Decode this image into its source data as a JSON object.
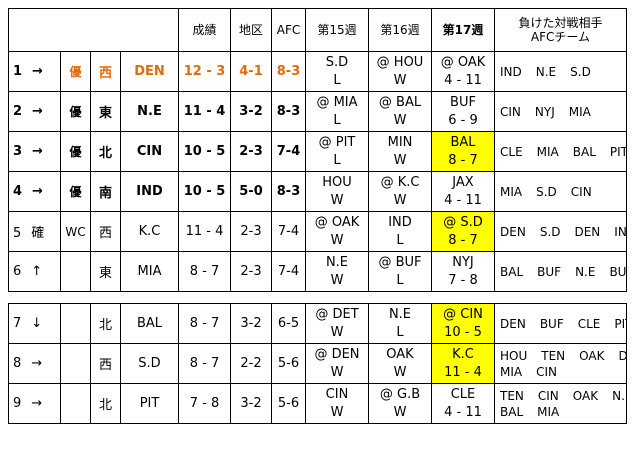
{
  "headers": {
    "record": "成績",
    "division": "地区",
    "afc": "AFC",
    "week15": "第15週",
    "week16": "第16週",
    "week17": "第17週",
    "losses_line1": "負けた対戦相手",
    "losses_line2": "AFCチーム"
  },
  "teams": [
    {
      "rank": "1",
      "trend": "→",
      "status": "優",
      "wc": "",
      "div": "西",
      "team": "DEN",
      "record": "12 - 3",
      "div_rec": "4-1",
      "afc_rec": "8-3",
      "w15": {
        "opp": "S.D",
        "res": "L"
      },
      "w16": {
        "opp": "@ HOU",
        "res": "W"
      },
      "w17": {
        "opp": "@ OAK",
        "res": "4 - 11"
      },
      "losses": [
        "IND",
        "N.E",
        "S.D"
      ]
    },
    {
      "rank": "2",
      "trend": "→",
      "status": "優",
      "wc": "",
      "div": "東",
      "team": "N.E",
      "record": "11 - 4",
      "div_rec": "3-2",
      "afc_rec": "8-3",
      "w15": {
        "opp": "@ MIA",
        "res": "L"
      },
      "w16": {
        "opp": "@ BAL",
        "res": "W"
      },
      "w17": {
        "opp": "BUF",
        "res": "6 - 9"
      },
      "losses": [
        "CIN",
        "NYJ",
        "MIA"
      ]
    },
    {
      "rank": "3",
      "trend": "→",
      "status": "優",
      "wc": "",
      "div": "北",
      "team": "CIN",
      "record": "10 - 5",
      "div_rec": "2-3",
      "afc_rec": "7-4",
      "w15": {
        "opp": "@ PIT",
        "res": "L"
      },
      "w16": {
        "opp": "MIN",
        "res": "W"
      },
      "w17": {
        "opp": "BAL",
        "res": "8 - 7"
      },
      "losses": [
        "CLE",
        "MIA",
        "BAL",
        "PIT"
      ]
    },
    {
      "rank": "4",
      "trend": "→",
      "status": "優",
      "wc": "",
      "div": "南",
      "team": "IND",
      "record": "10 - 5",
      "div_rec": "5-0",
      "afc_rec": "8-3",
      "w15": {
        "opp": "HOU",
        "res": "W"
      },
      "w16": {
        "opp": "@ K.C",
        "res": "W"
      },
      "w17": {
        "opp": "JAX",
        "res": "4 - 11"
      },
      "losses": [
        "MIA",
        "S.D",
        "CIN"
      ]
    },
    {
      "rank": "5",
      "trend": "確",
      "status": "",
      "wc": "WC",
      "div": "西",
      "team": "K.C",
      "record": "11 - 4",
      "div_rec": "2-3",
      "afc_rec": "7-4",
      "w15": {
        "opp": "@ OAK",
        "res": "W"
      },
      "w16": {
        "opp": "IND",
        "res": "L"
      },
      "w17": {
        "opp": "@ S.D",
        "res": "8 - 7"
      },
      "losses": [
        "DEN",
        "S.D",
        "DEN",
        "IND"
      ]
    },
    {
      "rank": "6",
      "trend": "↑",
      "status": "",
      "wc": "",
      "div": "東",
      "team": "MIA",
      "record": "8 - 7",
      "div_rec": "2-3",
      "afc_rec": "7-4",
      "w15": {
        "opp": "N.E",
        "res": "W"
      },
      "w16": {
        "opp": "@ BUF",
        "res": "L"
      },
      "w17": {
        "opp": "NYJ",
        "res": "7 - 8"
      },
      "losses": [
        "BAL",
        "BUF",
        "N.E",
        "BUF"
      ]
    },
    {
      "rank": "7",
      "trend": "↓",
      "status": "",
      "wc": "",
      "div": "北",
      "team": "BAL",
      "record": "8 - 7",
      "div_rec": "3-2",
      "afc_rec": "6-5",
      "w15": {
        "opp": "@ DET",
        "res": "W"
      },
      "w16": {
        "opp": "N.E",
        "res": "L"
      },
      "w17": {
        "opp": "@ CIN",
        "res": "10 - 5"
      },
      "losses": [
        "DEN",
        "BUF",
        "CLE",
        "PIT"
      ]
    },
    {
      "rank": "8",
      "trend": "→",
      "status": "",
      "wc": "",
      "div": "西",
      "team": "S.D",
      "record": "8 - 7",
      "div_rec": "2-2",
      "afc_rec": "5-6",
      "w15": {
        "opp": "@ DEN",
        "res": "W"
      },
      "w16": {
        "opp": "OAK",
        "res": "W"
      },
      "w17": {
        "opp": "K.C",
        "res": "11 - 4"
      },
      "losses": [
        "HOU",
        "TEN",
        "OAK",
        "DEN",
        "MIA",
        "CIN"
      ]
    },
    {
      "rank": "9",
      "trend": "→",
      "status": "",
      "wc": "",
      "div": "北",
      "team": "PIT",
      "record": "7 - 8",
      "div_rec": "3-2",
      "afc_rec": "5-6",
      "w15": {
        "opp": "CIN",
        "res": "W"
      },
      "w16": {
        "opp": "@ G.B",
        "res": "W"
      },
      "w17": {
        "opp": "CLE",
        "res": "4 - 11"
      },
      "losses": [
        "TEN",
        "CIN",
        "OAK",
        "N.E",
        "BAL",
        "MIA"
      ]
    }
  ],
  "colors": {
    "leader": "#e26b0a",
    "highlight": "#ffff00",
    "border": "#000000"
  }
}
